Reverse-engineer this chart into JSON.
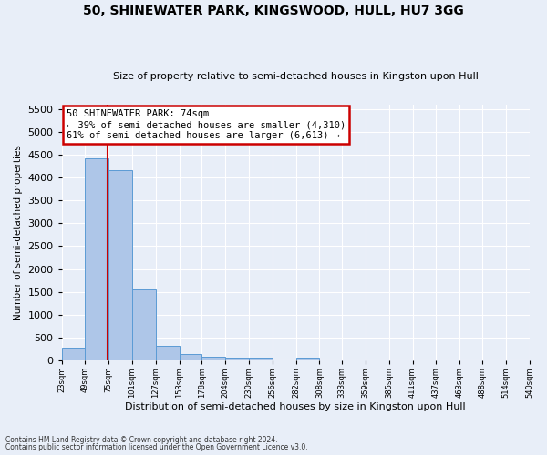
{
  "title": "50, SHINEWATER PARK, KINGSWOOD, HULL, HU7 3GG",
  "subtitle": "Size of property relative to semi-detached houses in Kingston upon Hull",
  "xlabel": "Distribution of semi-detached houses by size in Kingston upon Hull",
  "ylabel": "Number of semi-detached properties",
  "footnote1": "Contains HM Land Registry data © Crown copyright and database right 2024.",
  "footnote2": "Contains public sector information licensed under the Open Government Licence v3.0.",
  "annotation_title": "50 SHINEWATER PARK: 74sqm",
  "annotation_line1": "← 39% of semi-detached houses are smaller (4,310)",
  "annotation_line2": "61% of semi-detached houses are larger (6,613) →",
  "property_size": 74,
  "bin_edges": [
    23,
    49,
    75,
    101,
    127,
    153,
    178,
    204,
    230,
    256,
    282,
    308,
    333,
    359,
    385,
    411,
    437,
    463,
    488,
    514,
    540
  ],
  "bar_values": [
    280,
    4430,
    4160,
    1560,
    320,
    135,
    75,
    60,
    50,
    0,
    55,
    0,
    0,
    0,
    0,
    0,
    0,
    0,
    0,
    0
  ],
  "bar_color": "#aec6e8",
  "bar_edge_color": "#5b9bd5",
  "vline_color": "#cc0000",
  "annotation_box_edge_color": "#cc0000",
  "ylim": [
    0,
    5600
  ],
  "yticks": [
    0,
    500,
    1000,
    1500,
    2000,
    2500,
    3000,
    3500,
    4000,
    4500,
    5000,
    5500
  ],
  "bg_color": "#e8eef8",
  "grid_color": "#ffffff"
}
